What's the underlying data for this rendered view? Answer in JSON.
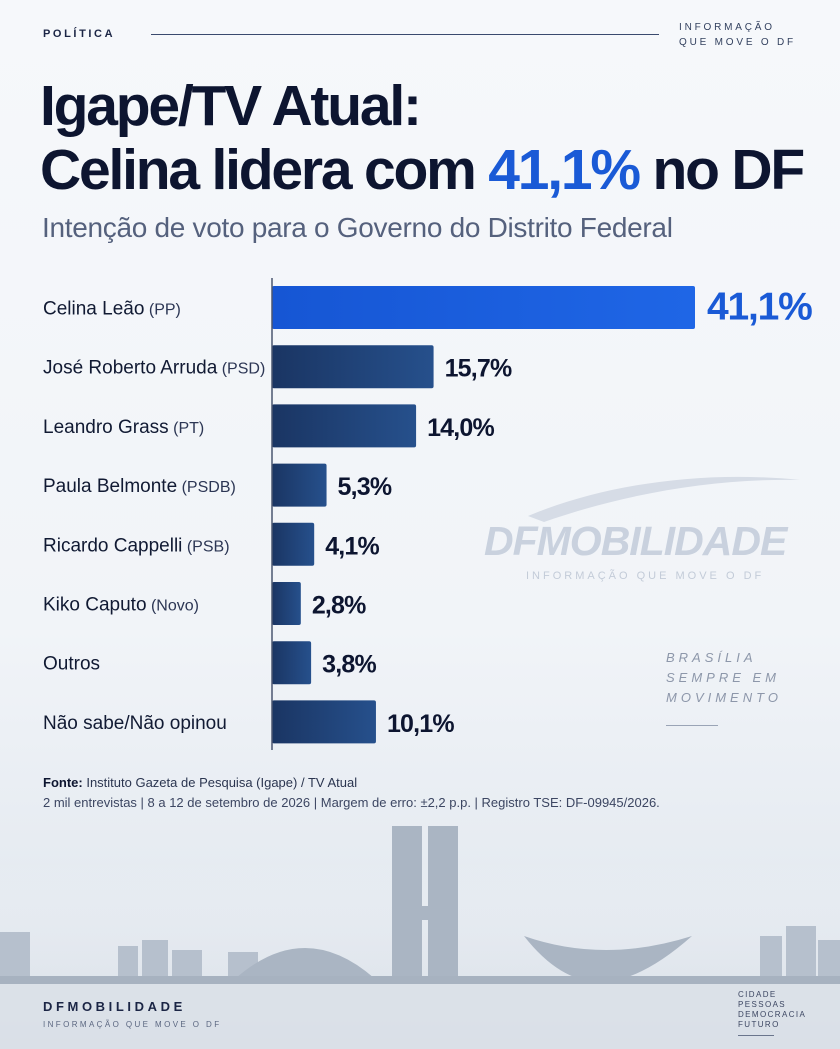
{
  "header": {
    "section": "POLÍTICA",
    "tagline_line1": "INFORMAÇÃO",
    "tagline_line2": "QUE MOVE O DF"
  },
  "title": {
    "line1": "Igape/TV Atual:",
    "line2_prefix": "Celina lidera com ",
    "line2_highlight": "41,1%",
    "line2_suffix": " no DF"
  },
  "subtitle": "Intenção de voto para o Governo do Distrito Federal",
  "chart_data": {
    "type": "bar",
    "orientation": "horizontal",
    "categories": [
      {
        "name": "Celina Leão",
        "party": "(PP)"
      },
      {
        "name": "José Roberto Arruda",
        "party": "(PSD)"
      },
      {
        "name": "Leandro Grass",
        "party": "(PT)"
      },
      {
        "name": "Paula Belmonte",
        "party": "(PSDB)"
      },
      {
        "name": "Ricardo Cappelli",
        "party": "(PSB)"
      },
      {
        "name": "Kiko Caputo",
        "party": "(Novo)"
      },
      {
        "name": "Outros",
        "party": ""
      },
      {
        "name": "Não sabe/Não opinou",
        "party": ""
      }
    ],
    "values": [
      41.1,
      15.7,
      14.0,
      5.3,
      4.1,
      2.8,
      3.8,
      10.1
    ],
    "labels": [
      "41,1%",
      "15,7%",
      "14,0%",
      "5,3%",
      "4,1%",
      "2,8%",
      "3,8%",
      "10,1%"
    ],
    "highlight_index": 0,
    "unit": "%",
    "xlim": [
      0,
      41.1
    ],
    "grid": false,
    "colors": {
      "highlight": "#1f66e6",
      "bar": "#1e3f73",
      "highlight_label": "#1a5ad6",
      "label": "#0d1530"
    }
  },
  "watermark": {
    "logo": "DFMOBILIDADE",
    "tagline": "INFORMAÇÃO QUE MOVE O DF"
  },
  "side_note": {
    "line1": "BRASÍLIA",
    "line2": "SEMPRE EM",
    "line3": "MOVIMENTO"
  },
  "source": {
    "label": "Fonte:",
    "text": " Instituto Gazeta de Pesquisa (Igape) / TV Atual",
    "meta": "2 mil entrevistas | 8 a 12 de setembro de 2026 | Margem de erro: ±2,2 p.p. | Registro TSE: DF-09945/2026."
  },
  "footer": {
    "brand": "DFMOBILIDADE",
    "tagline": "INFORMAÇÃO QUE MOVE O DF",
    "words": [
      "CIDADE",
      "PESSOAS",
      "DEMOCRACIA",
      "FUTURO"
    ]
  }
}
